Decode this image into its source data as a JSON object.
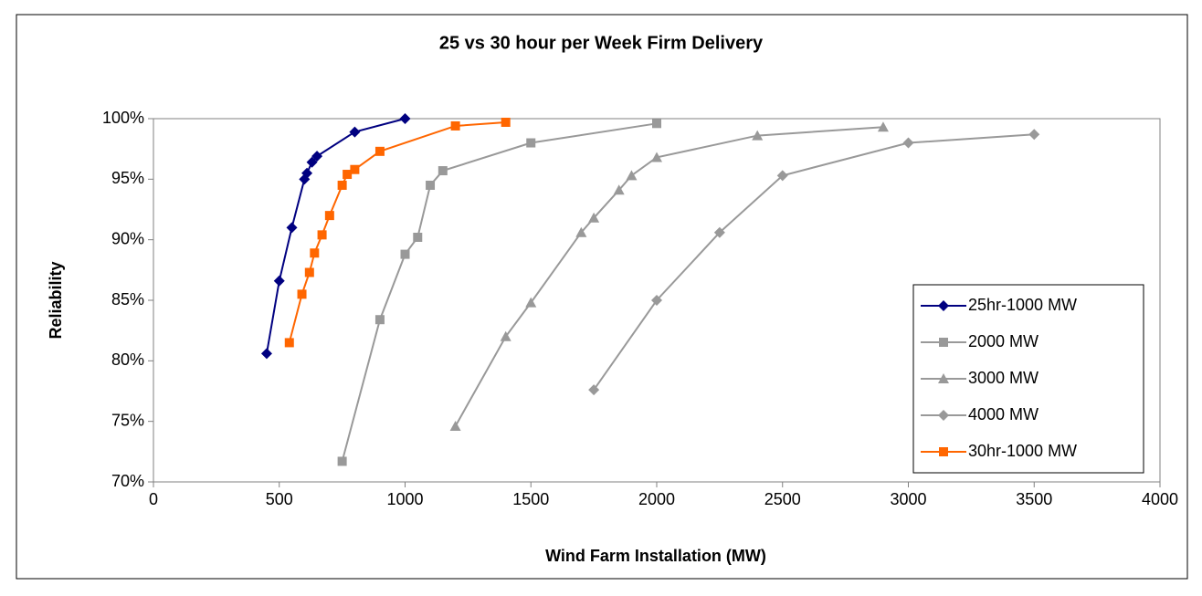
{
  "chart_data": {
    "type": "line",
    "title": "25 vs 30 hour per Week Firm Delivery",
    "x_label": "Wind Farm Installation (MW)",
    "y_label": "Reliability",
    "xlim": [
      0,
      4000
    ],
    "xticks": [
      0,
      500,
      1000,
      1500,
      2000,
      2500,
      3000,
      3500,
      4000
    ],
    "ylim": [
      70,
      100
    ],
    "yticks": [
      {
        "value": 70,
        "label": "70%"
      },
      {
        "value": 75,
        "label": "75%"
      },
      {
        "value": 80,
        "label": "80%"
      },
      {
        "value": 85,
        "label": "85%"
      },
      {
        "value": 90,
        "label": "90%"
      },
      {
        "value": 95,
        "label": "95%"
      },
      {
        "value": 100,
        "label": "100%"
      }
    ],
    "legend": "right",
    "series": [
      {
        "name": "25hr-1000 MW",
        "color": "#000080",
        "marker": "diamond",
        "x": [
          450,
          500,
          550,
          600,
          610,
          630,
          650,
          800,
          1000
        ],
        "values": [
          80.6,
          86.6,
          91.0,
          95.0,
          95.5,
          96.4,
          96.9,
          98.9,
          100
        ]
      },
      {
        "name": "2000 MW",
        "color": "#999999",
        "marker": "square",
        "x": [
          750,
          900,
          1000,
          1050,
          1100,
          1150,
          1500,
          2000
        ],
        "values": [
          71.7,
          83.4,
          88.8,
          90.2,
          94.5,
          95.7,
          98.0,
          99.6
        ]
      },
      {
        "name": "3000 MW",
        "color": "#999999",
        "marker": "triangle",
        "x": [
          1200,
          1400,
          1500,
          1700,
          1750,
          1850,
          1900,
          2000,
          2400,
          2900
        ],
        "values": [
          74.6,
          82.0,
          84.8,
          90.6,
          91.8,
          94.1,
          95.3,
          96.8,
          98.6,
          99.3
        ]
      },
      {
        "name": "4000 MW",
        "color": "#999999",
        "marker": "diamond",
        "x": [
          1750,
          2000,
          2250,
          2500,
          3000,
          3500
        ],
        "values": [
          77.6,
          85.0,
          90.6,
          95.3,
          98.0,
          98.7
        ]
      },
      {
        "name": "30hr-1000 MW",
        "color": "#ff6600",
        "marker": "square",
        "x": [
          540,
          590,
          620,
          640,
          670,
          700,
          750,
          770,
          800,
          900,
          1200,
          1400
        ],
        "values": [
          81.5,
          85.5,
          87.3,
          88.9,
          90.4,
          92.0,
          94.5,
          95.4,
          95.8,
          97.3,
          99.4,
          99.7
        ]
      }
    ]
  }
}
